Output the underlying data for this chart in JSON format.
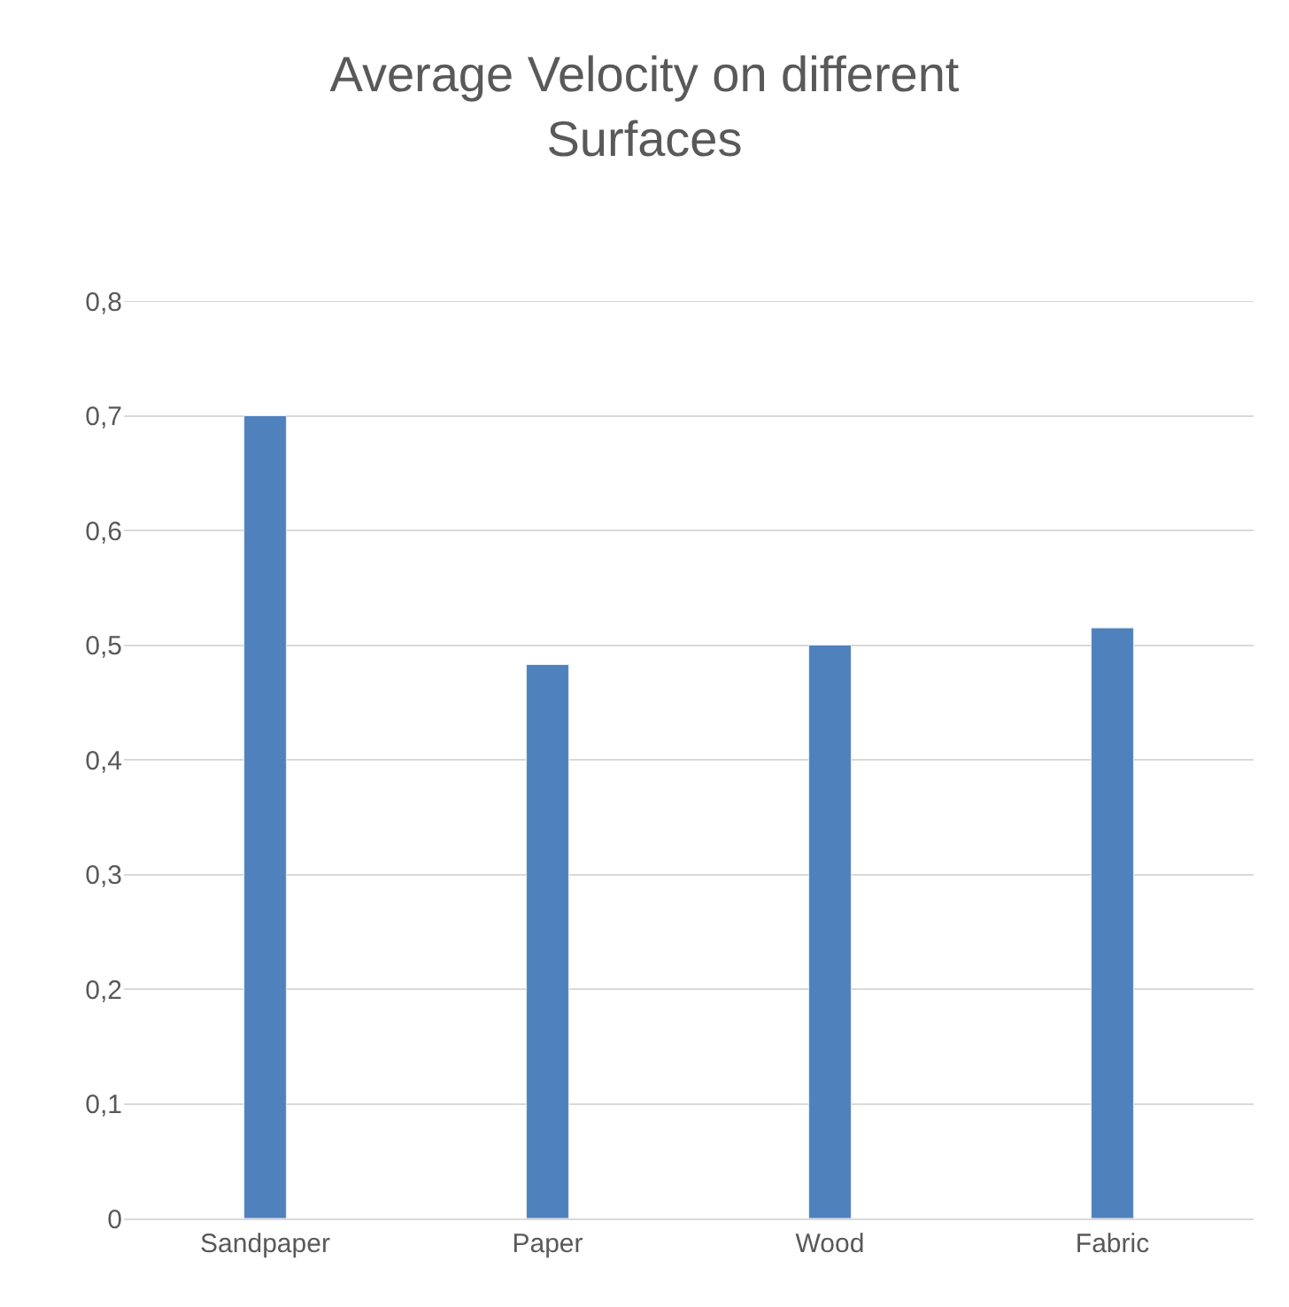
{
  "chart_data": {
    "type": "bar",
    "title": "Average Velocity on different\nSurfaces",
    "categories": [
      "Sandpaper",
      "Paper",
      "Wood",
      "Fabric"
    ],
    "values": [
      0.7,
      0.483,
      0.5,
      0.515
    ],
    "color": "#4f81bd",
    "ylim": [
      0,
      0.8
    ],
    "yticks": [
      {
        "value": 0,
        "label": "0"
      },
      {
        "value": 0.1,
        "label": "0,1"
      },
      {
        "value": 0.2,
        "label": "0,2"
      },
      {
        "value": 0.3,
        "label": "0,3"
      },
      {
        "value": 0.4,
        "label": "0,4"
      },
      {
        "value": 0.5,
        "label": "0,5"
      },
      {
        "value": 0.6,
        "label": "0,6"
      },
      {
        "value": 0.7,
        "label": "0,7"
      },
      {
        "value": 0.8,
        "label": "0,8"
      }
    ],
    "grid": "y"
  }
}
